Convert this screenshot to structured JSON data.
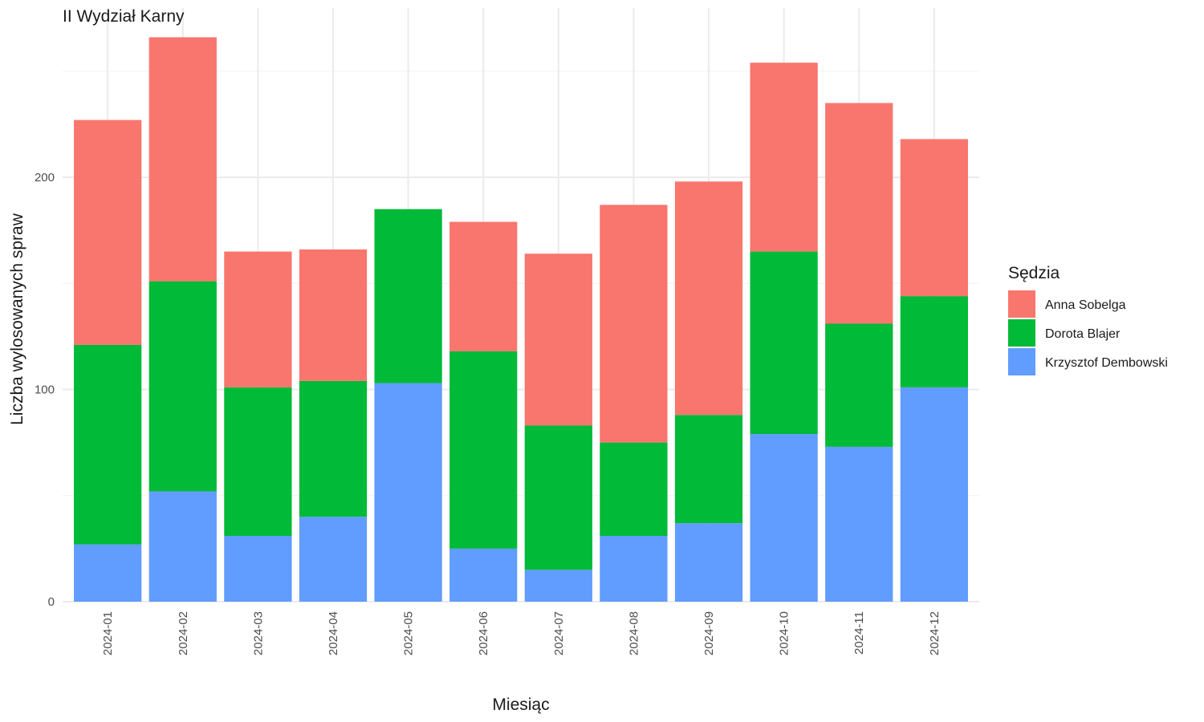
{
  "chart_data": {
    "type": "bar",
    "stacked": true,
    "title": "II Wydział Karny",
    "xlabel": "Miesiąc",
    "ylabel": "Liczba wylosowanych spraw",
    "ylim": [
      0,
      280
    ],
    "yticks": [
      0,
      100,
      200
    ],
    "grid": true,
    "legend_title": "Sędzia",
    "legend_position": "right",
    "categories": [
      "2024-01",
      "2024-02",
      "2024-03",
      "2024-04",
      "2024-05",
      "2024-06",
      "2024-07",
      "2024-08",
      "2024-09",
      "2024-10",
      "2024-11",
      "2024-12"
    ],
    "series": [
      {
        "name": "Krzysztof Dembowski",
        "color": "#619CFF",
        "values": [
          27,
          52,
          31,
          40,
          103,
          25,
          15,
          31,
          37,
          79,
          73,
          101
        ]
      },
      {
        "name": "Dorota Blajer",
        "color": "#00BA38",
        "values": [
          94,
          99,
          70,
          64,
          82,
          93,
          68,
          44,
          51,
          86,
          58,
          43
        ]
      },
      {
        "name": "Anna Sobelga",
        "color": "#F8766D",
        "values": [
          106,
          115,
          64,
          62,
          0,
          61,
          81,
          112,
          110,
          89,
          104,
          74
        ]
      }
    ],
    "legend_order": [
      "Anna Sobelga",
      "Dorota Blajer",
      "Krzysztof Dembowski"
    ]
  }
}
